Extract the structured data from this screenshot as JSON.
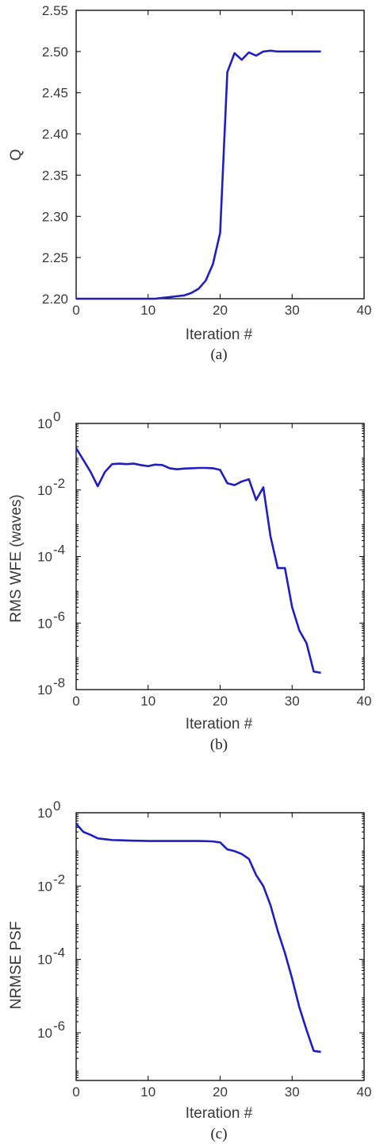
{
  "colors": {
    "series": "#1f1fbf",
    "axes": "#000000",
    "text": "#3a3a3a"
  },
  "chart_data": [
    {
      "type": "line",
      "caption": "(a)",
      "xlabel": "Iteration #",
      "ylabel": "Q",
      "xlim": [
        0,
        40
      ],
      "ylim": [
        2.2,
        2.55
      ],
      "yscale": "linear",
      "xticks": [
        0,
        10,
        20,
        30,
        40
      ],
      "xtick_labels": [
        "0",
        "10",
        "20",
        "30",
        "40"
      ],
      "yticks": [
        2.2,
        2.25,
        2.3,
        2.35,
        2.4,
        2.45,
        2.5,
        2.55
      ],
      "ytick_labels": [
        "2.20",
        "2.25",
        "2.30",
        "2.35",
        "2.40",
        "2.45",
        "2.50",
        "2.55"
      ],
      "grid": false,
      "series": [
        {
          "x": [
            0,
            1,
            2,
            3,
            4,
            5,
            6,
            7,
            8,
            9,
            10,
            11,
            12,
            13,
            14,
            15,
            16,
            17,
            18,
            19,
            20,
            21,
            22,
            23,
            24,
            25,
            26,
            27,
            28,
            29,
            30,
            31,
            32,
            33,
            34
          ],
          "y": [
            2.2,
            2.2,
            2.2,
            2.2,
            2.2,
            2.2,
            2.2,
            2.2,
            2.2,
            2.2,
            2.2,
            2.2,
            2.201,
            2.202,
            2.203,
            2.204,
            2.207,
            2.212,
            2.222,
            2.242,
            2.28,
            2.475,
            2.498,
            2.49,
            2.499,
            2.495,
            2.5,
            2.501,
            2.5,
            2.5,
            2.5,
            2.5,
            2.5,
            2.5,
            2.5
          ]
        }
      ]
    },
    {
      "type": "line",
      "caption": "(b)",
      "xlabel": "Iteration #",
      "ylabel": "RMS WFE (waves)",
      "xlim": [
        0,
        40
      ],
      "ylim": [
        1e-08,
        1
      ],
      "yscale": "log",
      "xticks": [
        0,
        10,
        20,
        30,
        40
      ],
      "xtick_labels": [
        "0",
        "10",
        "20",
        "30",
        "40"
      ],
      "yticks": [
        1,
        0.01,
        0.0001,
        1e-06,
        1e-08
      ],
      "ytick_base": [
        "10",
        "10",
        "10",
        "10",
        "10"
      ],
      "ytick_exp": [
        "0",
        "-2",
        "-4",
        "-6",
        "-8"
      ],
      "grid": false,
      "series": [
        {
          "x": [
            0,
            1,
            2,
            3,
            4,
            5,
            6,
            7,
            8,
            9,
            10,
            11,
            12,
            13,
            14,
            15,
            16,
            17,
            18,
            19,
            20,
            21,
            22,
            23,
            24,
            25,
            26,
            27,
            28,
            29,
            30,
            31,
            32,
            33,
            34
          ],
          "y": [
            0.18,
            0.08,
            0.035,
            0.013,
            0.035,
            0.06,
            0.062,
            0.06,
            0.062,
            0.056,
            0.052,
            0.058,
            0.056,
            0.045,
            0.042,
            0.044,
            0.045,
            0.046,
            0.046,
            0.045,
            0.04,
            0.016,
            0.014,
            0.018,
            0.021,
            0.005,
            0.012,
            0.0004,
            4.5e-05,
            4.5e-05,
            3e-06,
            6e-07,
            2.5e-07,
            3.5e-08,
            3.2e-08
          ]
        }
      ]
    },
    {
      "type": "line",
      "caption": "(c)",
      "xlabel": "Iteration #",
      "ylabel": "NRMSE PSF",
      "xlim": [
        0,
        40
      ],
      "ylim": [
        5e-08,
        1
      ],
      "yscale": "log",
      "xticks": [
        0,
        10,
        20,
        30,
        40
      ],
      "xtick_labels": [
        "0",
        "10",
        "20",
        "30",
        "40"
      ],
      "yticks": [
        1,
        0.01,
        0.0001,
        1e-06
      ],
      "ytick_base": [
        "10",
        "10",
        "10",
        "10"
      ],
      "ytick_exp": [
        "0",
        "-2",
        "-4",
        "-6"
      ],
      "grid": false,
      "series": [
        {
          "x": [
            0,
            1,
            2,
            3,
            4,
            5,
            6,
            7,
            8,
            9,
            10,
            11,
            12,
            13,
            14,
            15,
            16,
            17,
            18,
            19,
            20,
            21,
            22,
            23,
            24,
            25,
            26,
            27,
            28,
            29,
            30,
            31,
            32,
            33,
            34
          ],
          "y": [
            0.5,
            0.3,
            0.25,
            0.2,
            0.19,
            0.18,
            0.178,
            0.175,
            0.173,
            0.172,
            0.17,
            0.17,
            0.17,
            0.17,
            0.17,
            0.17,
            0.17,
            0.17,
            0.168,
            0.165,
            0.155,
            0.1,
            0.09,
            0.075,
            0.055,
            0.02,
            0.01,
            0.003,
            0.0006,
            0.00015,
            3e-05,
            5e-06,
            1.2e-06,
            3.2e-07,
            3e-07
          ]
        }
      ]
    }
  ]
}
